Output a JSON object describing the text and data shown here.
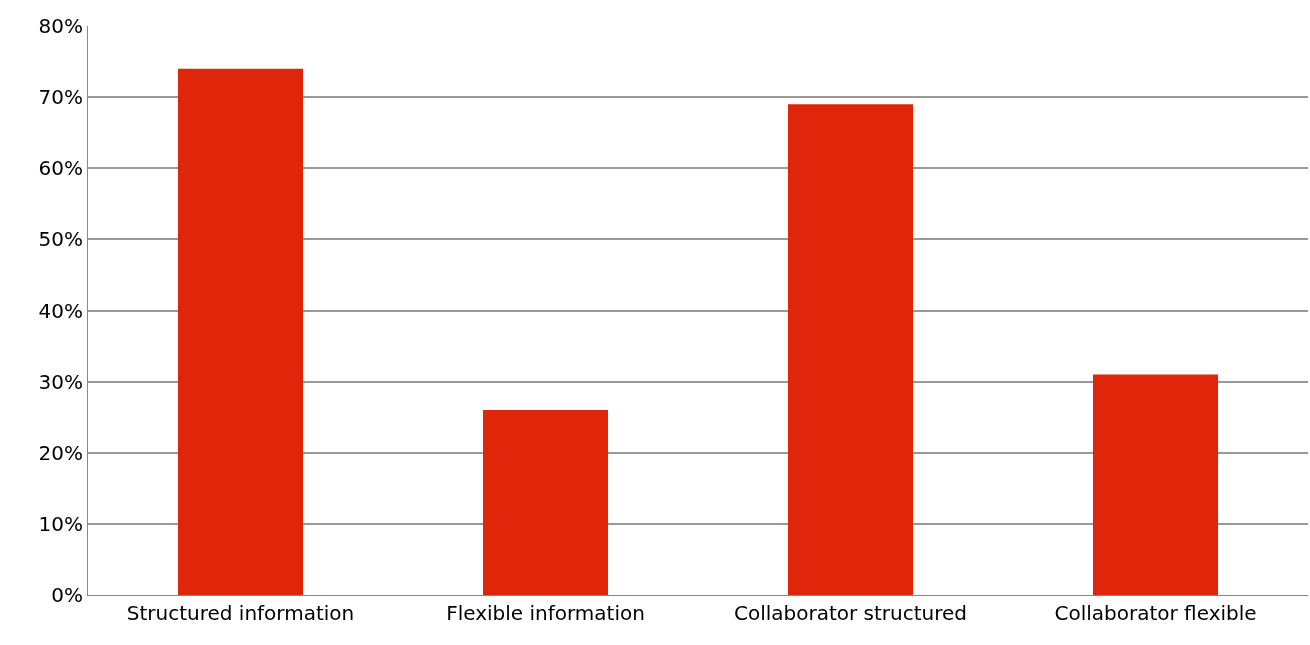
{
  "chart_data": {
    "type": "bar",
    "categories": [
      "Structured information",
      "Flexible information",
      "Collaborator structured",
      "Collaborator flexible"
    ],
    "values": [
      74,
      26,
      69,
      31
    ],
    "color": "#e0260a",
    "ylim": [
      0,
      80
    ],
    "yticks": [
      {
        "value": 0,
        "label": "0%"
      },
      {
        "value": 10,
        "label": "10%"
      },
      {
        "value": 20,
        "label": "20%"
      },
      {
        "value": 30,
        "label": "30%"
      },
      {
        "value": 40,
        "label": "40%"
      },
      {
        "value": 50,
        "label": "50%"
      },
      {
        "value": 60,
        "label": "60%"
      },
      {
        "value": 70,
        "label": "70%"
      },
      {
        "value": 80,
        "label": "80%"
      }
    ],
    "grid": "y"
  }
}
